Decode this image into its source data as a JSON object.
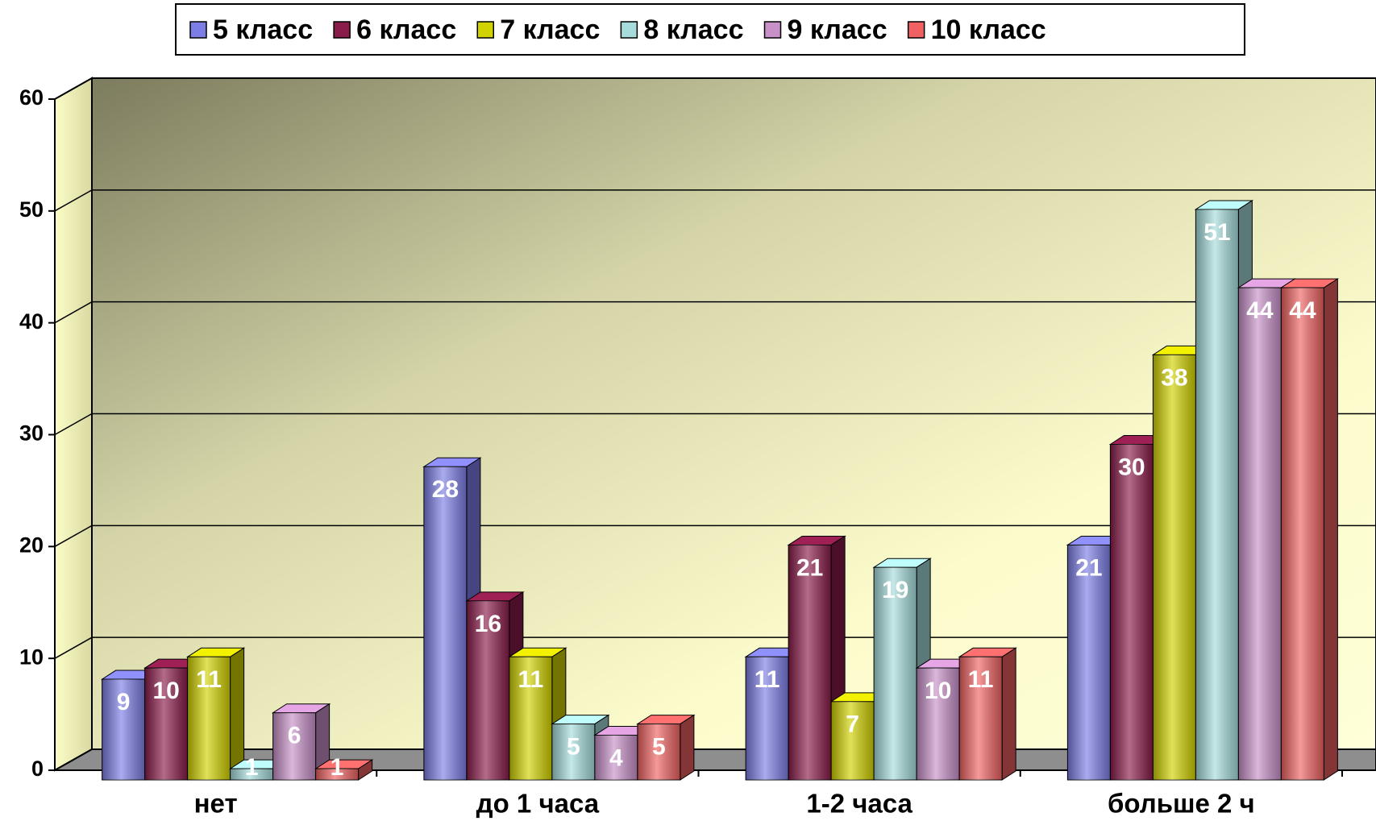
{
  "chart_data": {
    "type": "bar3d",
    "categories": [
      "нет",
      "до 1 часа",
      "1-2 часа",
      "больше 2 ч"
    ],
    "series": [
      {
        "name": "5 класс",
        "color": "#7d7de6",
        "values": [
          9,
          28,
          11,
          21
        ]
      },
      {
        "name": "6 класс",
        "color": "#8a1c4a",
        "values": [
          10,
          16,
          21,
          30
        ]
      },
      {
        "name": "7 класс",
        "color": "#d2d200",
        "values": [
          11,
          11,
          7,
          38
        ]
      },
      {
        "name": "8 класс",
        "color": "#a6dcdc",
        "values": [
          1,
          5,
          19,
          51
        ]
      },
      {
        "name": "9 класс",
        "color": "#c890c8",
        "values": [
          6,
          4,
          10,
          44
        ]
      },
      {
        "name": "10 класс",
        "color": "#f06262",
        "values": [
          1,
          5,
          11,
          44
        ]
      }
    ],
    "ylim": [
      0,
      60
    ],
    "yticks": [
      0,
      10,
      20,
      30,
      40,
      50,
      60
    ],
    "grid": true
  }
}
